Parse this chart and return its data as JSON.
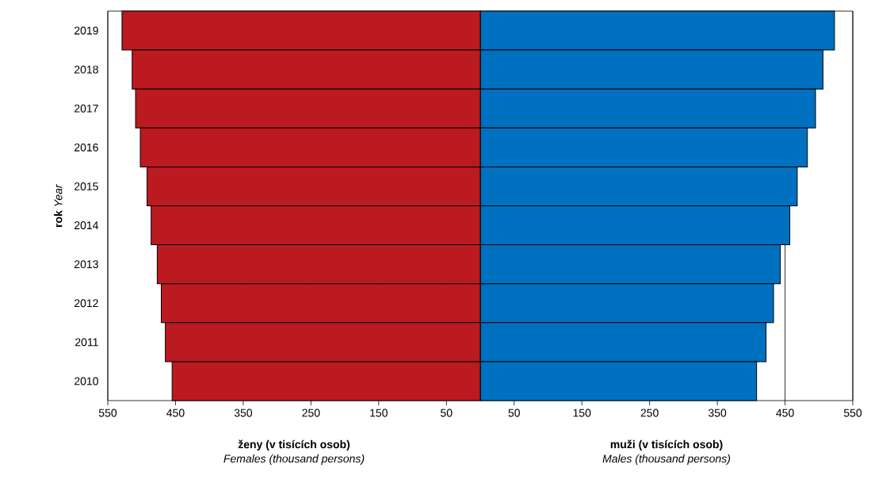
{
  "chart_data": {
    "type": "bar",
    "orientation": "horizontal",
    "ylabel": "**rok**   *Year*",
    "categories": [
      "2019",
      "2018",
      "2017",
      "2016",
      "2015",
      "2014",
      "2013",
      "2012",
      "2011",
      "2010"
    ],
    "series": [
      {
        "color": "#bb1a21",
        "values": [
          -529,
          -514,
          -509,
          -502,
          -492,
          -486,
          -477,
          -471,
          -465,
          -455
        ]
      },
      {
        "color": "#0070c0",
        "values": [
          523,
          506,
          495,
          483,
          468,
          457,
          443,
          433,
          422,
          408
        ]
      }
    ],
    "xlim": [
      -550,
      550
    ],
    "xticks": [
      {
        "value": -550,
        "label": "550"
      },
      {
        "value": -450,
        "label": "450"
      },
      {
        "value": -350,
        "label": "350"
      },
      {
        "value": -250,
        "label": "250"
      },
      {
        "value": -150,
        "label": "150"
      },
      {
        "value": -50,
        "label": "50"
      },
      50,
      150,
      250,
      350,
      450,
      550
    ],
    "grid": "x",
    "stacked": true,
    "annotations": [
      "ženy (v tisících  osob)",
      "Females (thousand persons)",
      "muži (v tisících  osob)",
      "Males (thousand persons)"
    ]
  }
}
